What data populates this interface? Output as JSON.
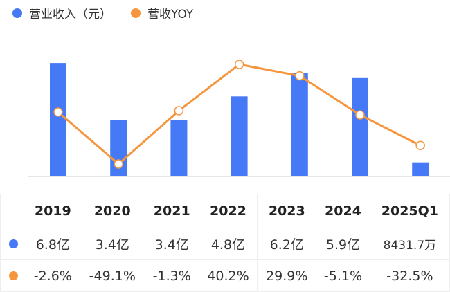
{
  "legend": {
    "revenue": "营业收入（元）",
    "yoy": "营收YOY"
  },
  "colors": {
    "bar": "#4579f5",
    "line": "#f5963f"
  },
  "chart_data": {
    "type": "bar+line",
    "categories": [
      "2019",
      "2020",
      "2021",
      "2022",
      "2023",
      "2024",
      "2025Q1"
    ],
    "series": [
      {
        "name": "营业收入（元）",
        "type": "bar",
        "unit": "亿",
        "values": [
          6.8,
          3.4,
          3.4,
          4.8,
          6.2,
          5.9,
          0.84317
        ]
      },
      {
        "name": "营收YOY",
        "type": "line",
        "unit": "%",
        "values": [
          -2.6,
          -49.1,
          -1.3,
          40.2,
          29.9,
          -5.1,
          -32.5
        ]
      }
    ],
    "legend_position": "top-left",
    "grid": false
  },
  "table": {
    "headers": [
      "2019",
      "2020",
      "2021",
      "2022",
      "2023",
      "2024",
      "2025Q1"
    ],
    "revenue": [
      "6.8亿",
      "3.4亿",
      "3.4亿",
      "4.8亿",
      "6.2亿",
      "5.9亿",
      "8431.7万"
    ],
    "yoy": [
      "-2.6%",
      "-49.1%",
      "-1.3%",
      "40.2%",
      "29.9%",
      "-5.1%",
      "-32.5%"
    ]
  }
}
